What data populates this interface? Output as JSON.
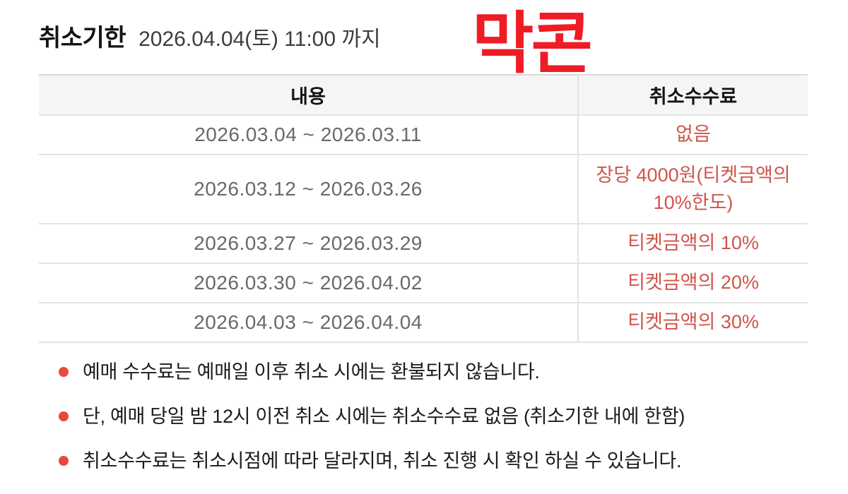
{
  "header": {
    "title": "취소기한",
    "deadline": "2026.04.04(토) 11:00 까지"
  },
  "annotation": {
    "text": "막콘",
    "color": "#ee1c25"
  },
  "table": {
    "columns": {
      "content": "내용",
      "fee": "취소수수료"
    },
    "rows": [
      {
        "period": "2026.03.04 ~ 2026.03.11",
        "fee": "없음"
      },
      {
        "period": "2026.03.12 ~ 2026.03.26",
        "fee": "장당 4000원(티켓금액의 10%한도)"
      },
      {
        "period": "2026.03.27 ~ 2026.03.29",
        "fee": "티켓금액의 10%"
      },
      {
        "period": "2026.03.30 ~ 2026.04.02",
        "fee": "티켓금액의 20%"
      },
      {
        "period": "2026.04.03 ~ 2026.04.04",
        "fee": "티켓금액의 30%"
      }
    ]
  },
  "notes": {
    "items": [
      "예매 수수료는 예매일 이후 취소 시에는 환불되지 않습니다.",
      "단, 예매 당일 밤 12시 이전 취소 시에는 취소수수료 없음 (취소기한 내에 한함)",
      "취소수수료는 취소시점에 따라 달라지며, 취소 진행 시 확인 하실 수 있습니다."
    ]
  },
  "colors": {
    "fee_text": "#d0544b",
    "annotation_red": "#ee1c25",
    "bullet_dot": "#e8473e",
    "table_header_bg": "#f5f5f6",
    "table_border": "#e3e3e3"
  }
}
